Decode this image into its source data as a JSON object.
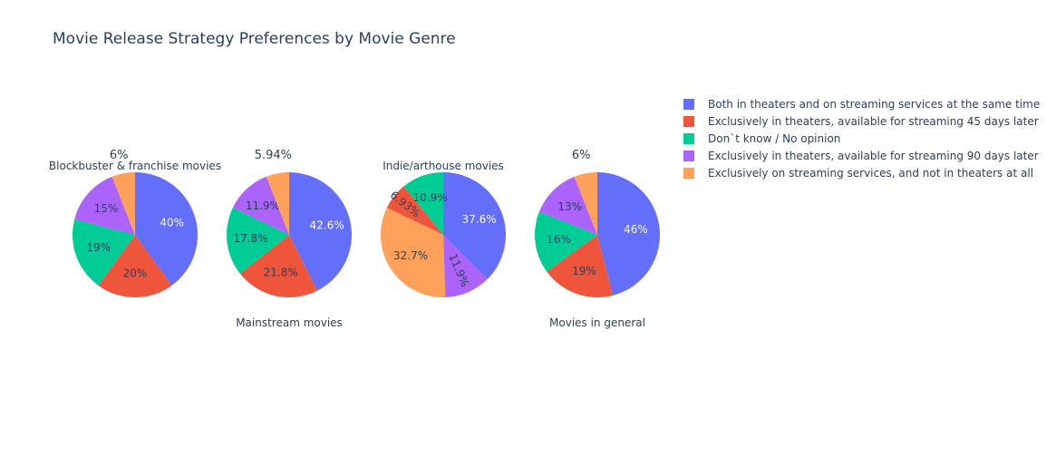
{
  "title": "Movie Release Strategy Preferences by Movie Genre",
  "chart_data": {
    "type": "pie",
    "legend_position": "top-right",
    "labels": [
      "Both in theaters and on streaming services at the same time",
      "Exclusively in theaters, available for streaming 45 days later",
      "Don`t know / No opinion",
      "Exclusively in theaters, available for streaming 90 days later",
      "Exclusively on streaming services, and not in theaters at all"
    ],
    "colors": [
      "#636efa",
      "#EF553B",
      "#00cc96",
      "#ab63fa",
      "#FFA15A"
    ],
    "pies": [
      {
        "name": "Blockbuster & franchise movies",
        "title_position": "top",
        "values": [
          40,
          20,
          19,
          15,
          6
        ],
        "text": [
          "40%",
          "20%",
          "19%",
          "15%",
          "6%"
        ]
      },
      {
        "name": "Mainstream movies",
        "title_position": "bottom",
        "values": [
          42.6,
          21.8,
          17.8,
          11.9,
          5.94
        ],
        "text": [
          "42.6%",
          "21.8%",
          "17.8%",
          "11.9%",
          "5.94%"
        ]
      },
      {
        "name": "Indie/arthouse movies",
        "title_position": "top",
        "values": [
          37.6,
          6.93,
          10.9,
          11.9,
          32.7
        ],
        "text": [
          "37.6%",
          "6.93%",
          "10.9%",
          "11.9%",
          "32.7%"
        ],
        "slice_order": [
          0,
          3,
          4,
          1,
          2
        ]
      },
      {
        "name": "Movies in general",
        "title_position": "bottom",
        "values": [
          46,
          19,
          16,
          13,
          6
        ],
        "text": [
          "46%",
          "19%",
          "16%",
          "13%",
          "6%"
        ]
      }
    ]
  }
}
